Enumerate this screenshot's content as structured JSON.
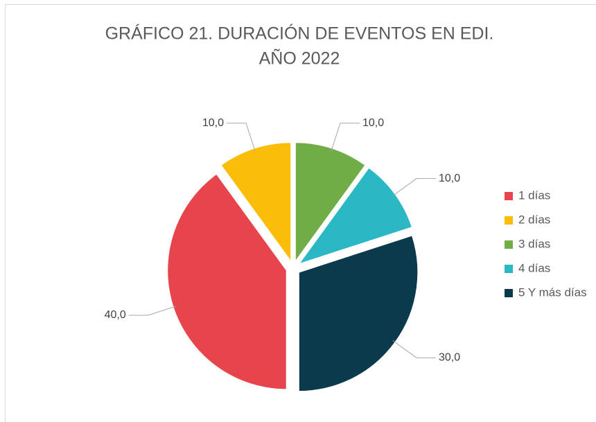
{
  "chart_data": {
    "type": "pie",
    "title": [
      "GRÁFICO 21. DURACIÓN DE EVENTOS EN EDI.",
      "AÑO 2022"
    ],
    "categories": [
      "1 días",
      "2 días",
      "3 días",
      "4 días",
      "5 Y más días"
    ],
    "values": [
      40,
      10,
      10,
      10,
      30
    ],
    "value_labels": [
      "40,0",
      "10,0",
      "10,0",
      "10,0",
      "30,0"
    ],
    "colors": [
      "#e8444b",
      "#fbbd07",
      "#70ad47",
      "#2ab8c4",
      "#0a3a4c"
    ],
    "start_angle": 180,
    "legend": "right"
  }
}
